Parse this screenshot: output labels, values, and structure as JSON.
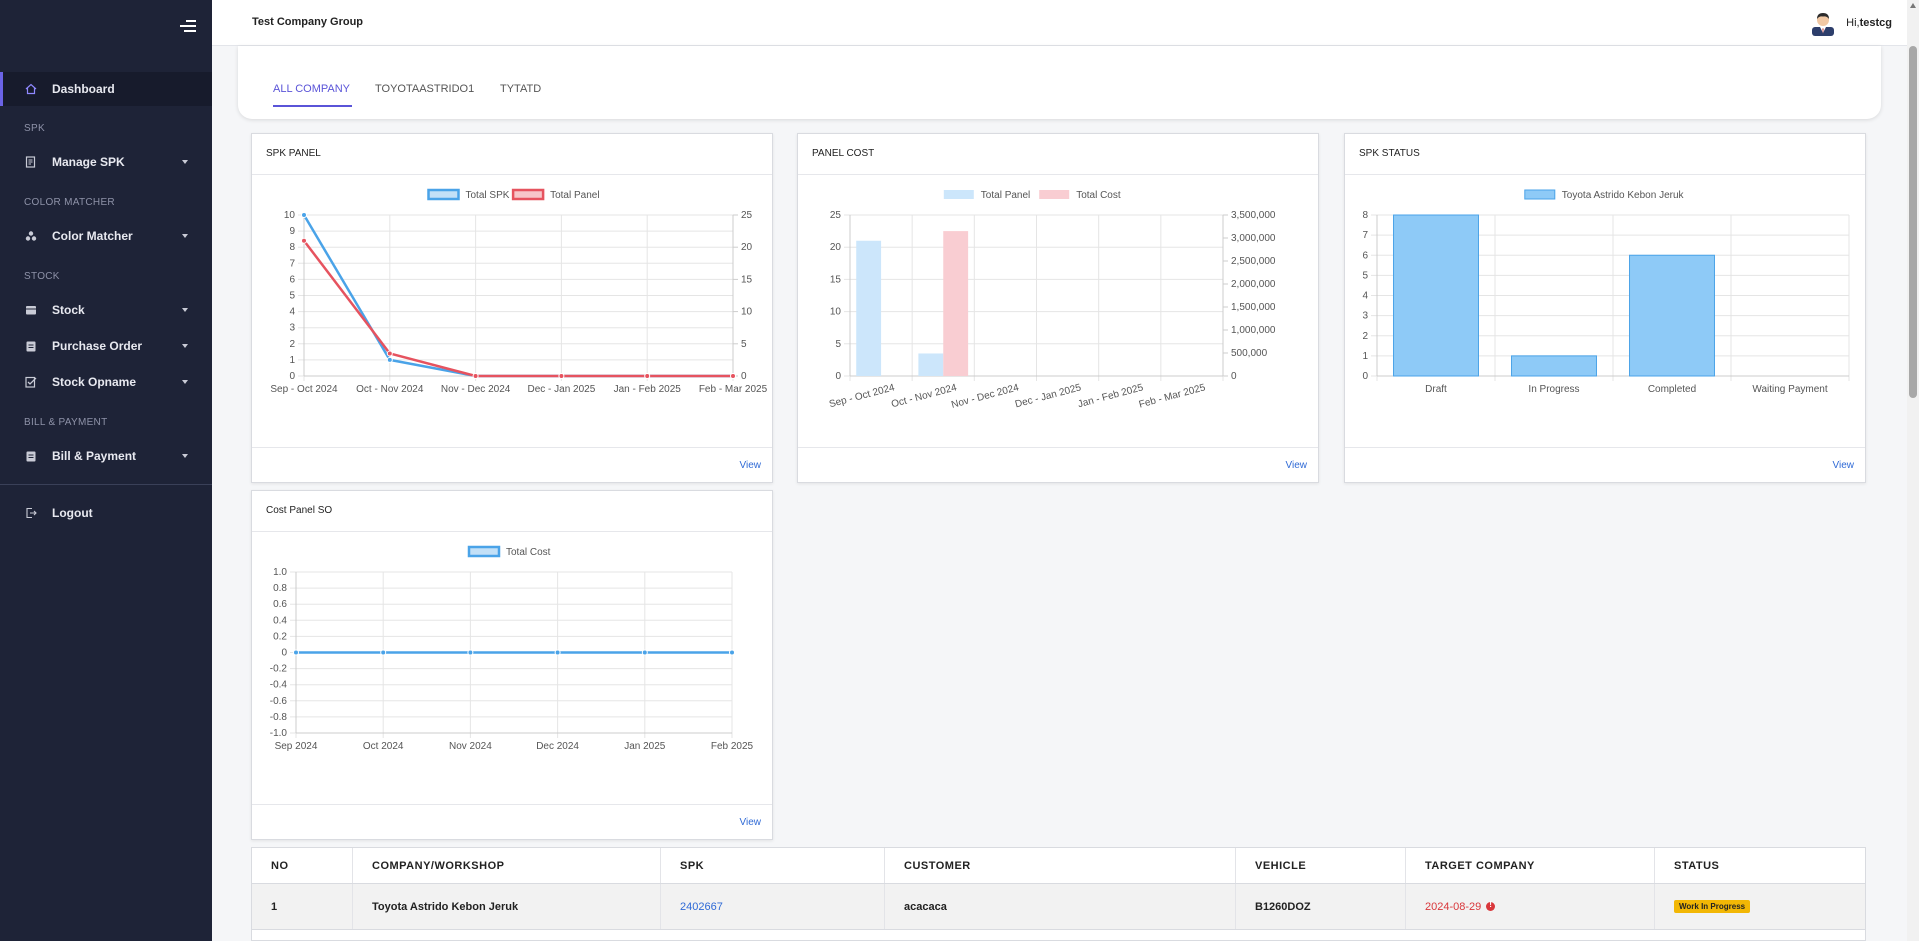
{
  "header": {
    "company": "Test Company Group",
    "greeting": "Hi,",
    "username": "testcg"
  },
  "sidebar": {
    "dashboard": "Dashboard",
    "sections": {
      "spk": "SPK",
      "color_matcher": "COLOR MATCHER",
      "stock": "STOCK",
      "bill_payment": "BILL & PAYMENT"
    },
    "items": {
      "manage_spk": "Manage SPK",
      "color_matcher": "Color Matcher",
      "stock": "Stock",
      "purchase_order": "Purchase Order",
      "stock_opname": "Stock Opname",
      "bill_payment": "Bill & Payment"
    },
    "logout": "Logout"
  },
  "tabs": [
    "ALL COMPANY",
    "TOYOTAASTRIDO1",
    "TYTATD"
  ],
  "cards": {
    "spk_panel": {
      "title": "SPK PANEL",
      "view": "View"
    },
    "panel_cost": {
      "title": "PANEL COST",
      "view": "View"
    },
    "spk_status": {
      "title": "SPK STATUS",
      "view": "View"
    },
    "cost_panel_so": {
      "title": "Cost Panel SO",
      "view": "View"
    }
  },
  "chart_data": [
    {
      "id": "spk_panel",
      "type": "line",
      "title": "SPK PANEL",
      "categories": [
        "Sep - Oct 2024",
        "Oct - Nov 2024",
        "Nov - Dec 2024",
        "Dec - Jan 2025",
        "Jan - Feb 2025",
        "Feb - Mar 2025"
      ],
      "series": [
        {
          "name": "Total SPK",
          "axis": "left",
          "color": "#4aa3e8",
          "values": [
            10,
            1,
            0,
            0,
            0,
            0
          ]
        },
        {
          "name": "Total Panel",
          "axis": "right",
          "color": "#e6535f",
          "values": [
            21,
            3.5,
            0,
            0,
            0,
            0
          ]
        }
      ],
      "yleft": {
        "min": 0,
        "max": 10,
        "ticks": [
          "0",
          "1",
          "2",
          "3",
          "4",
          "5",
          "6",
          "7",
          "8",
          "9",
          "10"
        ]
      },
      "yright": {
        "min": 0,
        "max": 25,
        "ticks": [
          "0",
          "5",
          "10",
          "15",
          "20",
          "25"
        ]
      },
      "legend": "top",
      "grid": true
    },
    {
      "id": "panel_cost",
      "type": "bar",
      "title": "PANEL COST",
      "categories": [
        "Sep - Oct 2024",
        "Oct - Nov 2024",
        "Nov - Dec 2024",
        "Dec - Jan 2025",
        "Jan - Feb 2025",
        "Feb - Mar 2025"
      ],
      "series": [
        {
          "name": "Total Panel",
          "axis": "left",
          "color": "#cce6fb",
          "values": [
            21,
            3.5,
            0,
            0,
            0,
            0
          ]
        },
        {
          "name": "Total Cost",
          "axis": "right",
          "color": "#f9cdd2",
          "values": [
            0,
            3150000,
            0,
            0,
            0,
            0
          ]
        }
      ],
      "yleft": {
        "min": 0,
        "max": 25,
        "ticks": [
          "0",
          "5",
          "10",
          "15",
          "20",
          "25"
        ]
      },
      "yright": {
        "min": 0,
        "max": 3500000,
        "ticks": [
          "0",
          "500,000",
          "1,000,000",
          "1,500,000",
          "2,000,000",
          "2,500,000",
          "3,000,000",
          "3,500,000"
        ]
      },
      "legend": "top",
      "grid": true
    },
    {
      "id": "spk_status",
      "type": "bar",
      "title": "SPK STATUS",
      "categories": [
        "Draft",
        "In Progress",
        "Completed",
        "Waiting Payment"
      ],
      "series": [
        {
          "name": "Toyota Astrido Kebon Jeruk",
          "color": "#8ecaf7",
          "values": [
            8,
            1,
            6,
            0
          ]
        }
      ],
      "yleft": {
        "min": 0,
        "max": 8,
        "ticks": [
          "0",
          "1",
          "2",
          "3",
          "4",
          "5",
          "6",
          "7",
          "8"
        ]
      },
      "legend": "top",
      "grid": true
    },
    {
      "id": "cost_panel_so",
      "type": "line",
      "title": "Cost Panel SO",
      "categories": [
        "Sep 2024",
        "Oct 2024",
        "Nov 2024",
        "Dec 2024",
        "Jan 2025",
        "Feb 2025"
      ],
      "series": [
        {
          "name": "Total Cost",
          "color": "#4aa3e8",
          "values": [
            0,
            0,
            0,
            0,
            0,
            0
          ]
        }
      ],
      "yleft": {
        "min": -1.0,
        "max": 1.0,
        "ticks": [
          "-1.0",
          "-0.8",
          "-0.6",
          "-0.4",
          "-0.2",
          "0",
          "0.2",
          "0.4",
          "0.6",
          "0.8",
          "1.0"
        ]
      },
      "legend": "top",
      "grid": true
    }
  ],
  "table": {
    "headers": [
      "NO",
      "COMPANY/WORKSHOP",
      "SPK",
      "CUSTOMER",
      "VEHICLE",
      "TARGET COMPANY",
      "STATUS"
    ],
    "rows": [
      {
        "no": "1",
        "company": "Toyota Astrido Kebon Jeruk",
        "spk": "2402667",
        "customer": "acacaca",
        "vehicle": "B1260DOZ",
        "target": "2024-08-29",
        "status": "Work In Progress"
      }
    ]
  },
  "colors": {
    "accent": "#5a54d8",
    "sidebar_bg": "#1e2337",
    "link": "#2f6ad6",
    "danger": "#d9373b",
    "warning_badge": "#f2b705"
  }
}
